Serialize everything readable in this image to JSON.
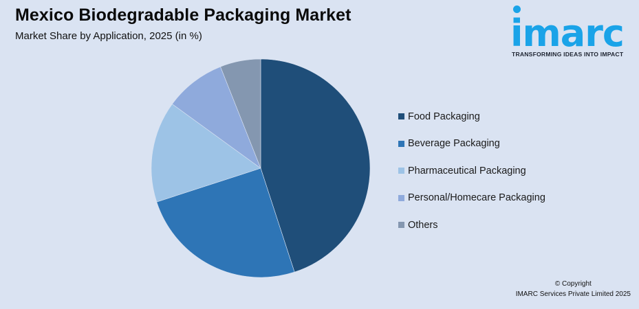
{
  "header": {
    "title": "Mexico Biodegradable Packaging Market",
    "subtitle": "Market Share by Application, 2025 (in %)"
  },
  "logo": {
    "word": "imarc",
    "tagline": "TRANSFORMING IDEAS INTO IMPACT",
    "color": "#1aa3e8"
  },
  "footer": {
    "copyright": "© Copyright",
    "company": "IMARC Services Private Limited 2025"
  },
  "chart_data": {
    "type": "pie",
    "title": "Mexico Biodegradable Packaging Market",
    "subtitle": "Market Share by Application, 2025 (in %)",
    "categories": [
      "Food Packaging",
      "Beverage Packaging",
      "Pharmaceutical Packaging",
      "Personal/Homecare Packaging",
      "Others"
    ],
    "values": [
      45,
      25,
      15,
      9,
      6
    ],
    "colors": [
      "#1f4e79",
      "#2e75b6",
      "#9dc3e6",
      "#8faadc",
      "#8497b0"
    ],
    "start_angle_deg": 0,
    "direction": "clockwise",
    "legend_position": "right",
    "data_labels": false
  },
  "legend": {
    "items": [
      {
        "label": "Food Packaging",
        "color": "#1f4e79"
      },
      {
        "label": "Beverage Packaging",
        "color": "#2e75b6"
      },
      {
        "label": "Pharmaceutical Packaging",
        "color": "#9dc3e6"
      },
      {
        "label": "Personal/Homecare Packaging",
        "color": "#8faadc"
      },
      {
        "label": "Others",
        "color": "#8497b0"
      }
    ]
  },
  "background": "#dae3f2"
}
